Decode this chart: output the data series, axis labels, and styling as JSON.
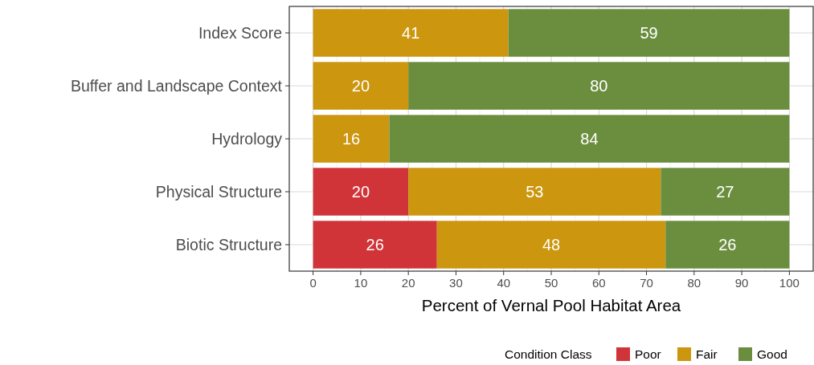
{
  "chart_data": {
    "type": "bar",
    "orientation": "horizontal",
    "stacked": true,
    "xlabel": "Percent of Vernal Pool Habitat Area",
    "legend_title": "Condition Class",
    "legend": "bottom right",
    "grid": true,
    "data_labels": true,
    "categories": [
      "Index Score",
      "Buffer and Landscape Context",
      "Hydrology",
      "Physical Structure",
      "Biotic Structure"
    ],
    "xlim": [
      -5,
      105
    ],
    "xticks": [
      0,
      10,
      20,
      30,
      40,
      50,
      60,
      70,
      80,
      90,
      100
    ],
    "series": [
      {
        "name": "Poor",
        "color": "#d13438",
        "values": [
          null,
          null,
          null,
          20,
          26
        ]
      },
      {
        "name": "Fair",
        "color": "#cc960e",
        "values": [
          41,
          20,
          16,
          53,
          48
        ]
      },
      {
        "name": "Good",
        "color": "#6b8e3e",
        "values": [
          59,
          80,
          84,
          27,
          26
        ]
      }
    ]
  }
}
